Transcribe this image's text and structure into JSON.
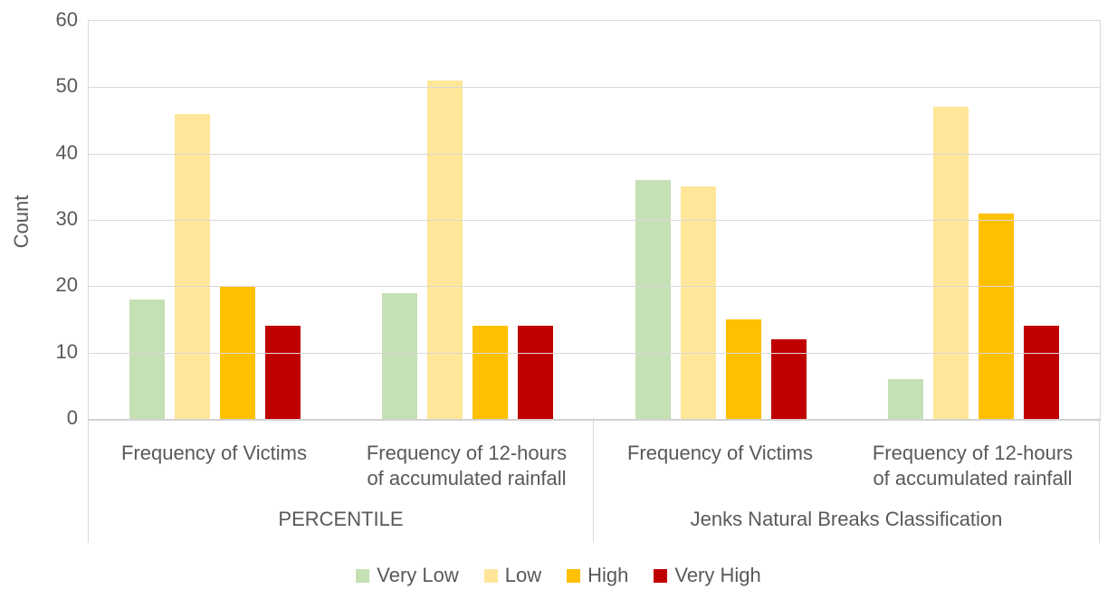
{
  "chart_data": {
    "type": "bar",
    "title": "",
    "xlabel": "",
    "ylabel": "Count",
    "ylim": [
      0,
      60
    ],
    "yticks": [
      0,
      10,
      20,
      30,
      40,
      50,
      60
    ],
    "grid": true,
    "legend_position": "bottom",
    "group_labels": [
      "Frequency of Victims",
      "Frequency of 12-hours\nof accumulated rainfall",
      "Frequency of Victims",
      "Frequency of 12-hours\nof accumulated rainfall"
    ],
    "super_groups": [
      "PERCENTILE",
      "Jenks Natural Breaks Classification"
    ],
    "series": [
      {
        "name": "Very Low",
        "color": "#C5E0B4",
        "values": [
          18,
          19,
          36,
          6
        ]
      },
      {
        "name": "Low",
        "color": "#FFE699",
        "values": [
          46,
          51,
          35,
          47
        ]
      },
      {
        "name": "High",
        "color": "#FFC000",
        "values": [
          20,
          14,
          15,
          31
        ]
      },
      {
        "name": "Very High",
        "color": "#C00000",
        "values": [
          14,
          14,
          12,
          14
        ]
      }
    ],
    "colors": {
      "text": "#595959",
      "gridline": "#D9D9D9",
      "axis_line": "#D2D2D2"
    }
  }
}
